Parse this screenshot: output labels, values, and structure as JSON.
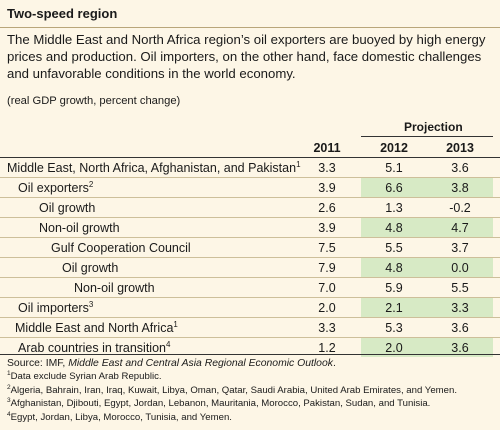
{
  "box": {
    "title": "Two-speed region",
    "intro": "The Middle East and North Africa region’s oil exporters are buoyed by high energy prices and production. Oil importers, on the other hand, face domestic challenges and unfavorable conditions in the world economy.",
    "unit": "(real GDP growth, percent change)"
  },
  "table": {
    "projection_label": "Projection",
    "years": [
      "2011",
      "2012",
      "2013"
    ],
    "rows": [
      {
        "label": "Middle East, North Africa, Afghanistan, and Pakistan",
        "sup": "1",
        "values": [
          "3.3",
          "5.1",
          "3.6"
        ],
        "highlight": false
      },
      {
        "label": "Oil exporters",
        "sup": "2",
        "values": [
          "3.9",
          "6.6",
          "3.8"
        ],
        "highlight": true
      },
      {
        "label": "Oil growth",
        "sup": "",
        "values": [
          "2.6",
          "1.3",
          "-0.2"
        ],
        "highlight": false
      },
      {
        "label": "Non-oil growth",
        "sup": "",
        "values": [
          "3.9",
          "4.8",
          "4.7"
        ],
        "highlight": true
      },
      {
        "label": "Gulf Cooperation Council",
        "sup": "",
        "values": [
          "7.5",
          "5.5",
          "3.7"
        ],
        "highlight": false
      },
      {
        "label": "Oil growth",
        "sup": "",
        "values": [
          "7.9",
          "4.8",
          "0.0"
        ],
        "highlight": true
      },
      {
        "label": "Non-oil growth",
        "sup": "",
        "values": [
          "7.0",
          "5.9",
          "5.5"
        ],
        "highlight": false
      },
      {
        "label": "Oil importers",
        "sup": "3",
        "values": [
          "2.0",
          "2.1",
          "3.3"
        ],
        "highlight": true
      },
      {
        "label": "Middle East and North Africa",
        "sup": "1",
        "values": [
          "3.3",
          "5.3",
          "3.6"
        ],
        "highlight": false
      },
      {
        "label": "Arab countries in transition",
        "sup": "4",
        "values": [
          "1.2",
          "2.0",
          "3.6"
        ],
        "highlight": true
      }
    ]
  },
  "notes": {
    "source_prefix": "Source: IMF, ",
    "source_title": "Middle East and Central Asia Regional Economic Outlook",
    "source_suffix": ".",
    "footnotes": [
      {
        "mark": "1",
        "text": "Data exclude Syrian Arab Republic."
      },
      {
        "mark": "2",
        "text": "Algeria, Bahrain, Iran, Iraq, Kuwait, Libya, Oman, Qatar, Saudi Arabia, United Arab Emirates, and Yemen."
      },
      {
        "mark": "3",
        "text": "Afghanistan, Djibouti, Egypt, Jordan, Lebanon, Mauritania, Morocco, Pakistan, Sudan, and Tunisia."
      },
      {
        "mark": "4",
        "text": "Egypt, Jordan, Libya, Morocco, Tunisia, and Yemen."
      }
    ]
  },
  "colors": {
    "background": "#fdf6e6",
    "highlight": "#d7eac5"
  }
}
